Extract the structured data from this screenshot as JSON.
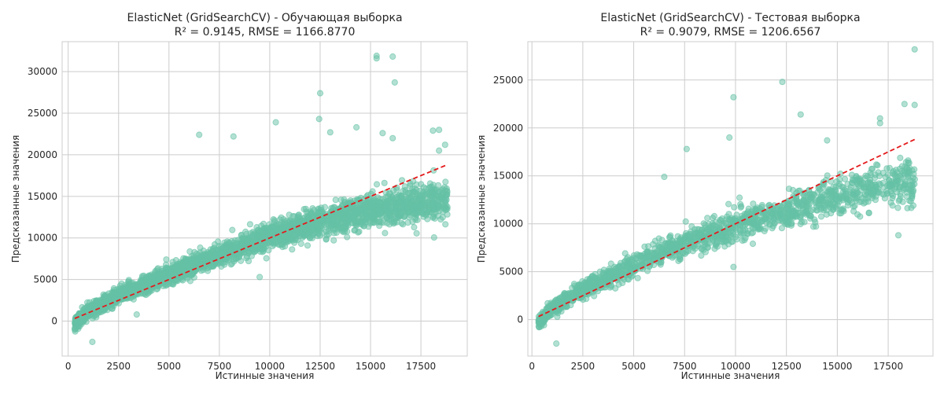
{
  "chart_data": [
    {
      "type": "scatter",
      "title": "ElasticNet (GridSearchCV) - Обучающая выборка",
      "subtitle": "R² = 0.9145, RMSE = 1166.8770",
      "xlabel": "Истинные значения",
      "ylabel": "Предсказанные значения",
      "xlim": [
        -300,
        19800
      ],
      "ylim": [
        -4200,
        33600
      ],
      "xticks": [
        0,
        2500,
        5000,
        7500,
        10000,
        12500,
        15000,
        17500
      ],
      "yticks": [
        0,
        5000,
        10000,
        15000,
        20000,
        25000,
        30000
      ],
      "grid": true,
      "colors": {
        "points": "#66c2a5",
        "reference_line": "#e41a1c"
      },
      "reference_line": {
        "x": [
          326,
          18823
        ],
        "y": [
          326,
          18823
        ]
      },
      "point_model": {
        "count": 3200,
        "band_centers_x": [
          326,
          1000,
          2500,
          5000,
          7500,
          10000,
          12500,
          15000,
          17500,
          18823
        ],
        "band_centers_y": [
          -300,
          1200,
          3100,
          5600,
          7900,
          10200,
          12000,
          13300,
          14200,
          14500
        ],
        "spread": 1050
      },
      "outliers": [
        {
          "x": 15300,
          "y": 31900
        },
        {
          "x": 15300,
          "y": 31600
        },
        {
          "x": 16100,
          "y": 31800
        },
        {
          "x": 16200,
          "y": 28700
        },
        {
          "x": 12500,
          "y": 27400
        },
        {
          "x": 12450,
          "y": 24300
        },
        {
          "x": 6500,
          "y": 22400
        },
        {
          "x": 8200,
          "y": 22200
        },
        {
          "x": 14300,
          "y": 23300
        },
        {
          "x": 13000,
          "y": 22700
        },
        {
          "x": 15600,
          "y": 22600
        },
        {
          "x": 16100,
          "y": 22000
        },
        {
          "x": 18100,
          "y": 22900
        },
        {
          "x": 18400,
          "y": 23000
        },
        {
          "x": 10300,
          "y": 23900
        },
        {
          "x": 18700,
          "y": 21200
        },
        {
          "x": 18400,
          "y": 20500
        },
        {
          "x": 9500,
          "y": 5300
        },
        {
          "x": 3400,
          "y": 800
        },
        {
          "x": 1200,
          "y": -2500
        }
      ]
    },
    {
      "type": "scatter",
      "title": "ElasticNet (GridSearchCV) - Тестовая выборка",
      "subtitle": "R² = 0.9079, RMSE = 1206.6567",
      "xlabel": "Истинные значения",
      "ylabel": "Предсказанные значения",
      "xlim": [
        -200,
        19700
      ],
      "ylim": [
        -3800,
        29000
      ],
      "xticks": [
        0,
        2500,
        5000,
        7500,
        10000,
        12500,
        15000,
        17500
      ],
      "yticks": [
        0,
        5000,
        10000,
        15000,
        20000,
        25000
      ],
      "grid": true,
      "colors": {
        "points": "#66c2a5",
        "reference_line": "#e41a1c"
      },
      "reference_line": {
        "x": [
          326,
          18823
        ],
        "y": [
          326,
          18823
        ]
      },
      "point_model": {
        "count": 1700,
        "band_centers_x": [
          326,
          1000,
          2500,
          5000,
          7500,
          10000,
          12500,
          15000,
          17500,
          18823
        ],
        "band_centers_y": [
          -300,
          1200,
          3100,
          5700,
          8000,
          9800,
          11200,
          12900,
          14100,
          14400
        ],
        "spread": 1050
      },
      "outliers": [
        {
          "x": 18800,
          "y": 28200
        },
        {
          "x": 12300,
          "y": 24800
        },
        {
          "x": 9900,
          "y": 23200
        },
        {
          "x": 13200,
          "y": 21400
        },
        {
          "x": 18300,
          "y": 22500
        },
        {
          "x": 18800,
          "y": 22400
        },
        {
          "x": 7600,
          "y": 17800
        },
        {
          "x": 9700,
          "y": 19000
        },
        {
          "x": 6500,
          "y": 14900
        },
        {
          "x": 17100,
          "y": 21000
        },
        {
          "x": 17100,
          "y": 20500
        },
        {
          "x": 9900,
          "y": 5500
        },
        {
          "x": 1200,
          "y": -2500
        },
        {
          "x": 18000,
          "y": 8800
        },
        {
          "x": 14500,
          "y": 18700
        }
      ]
    }
  ]
}
